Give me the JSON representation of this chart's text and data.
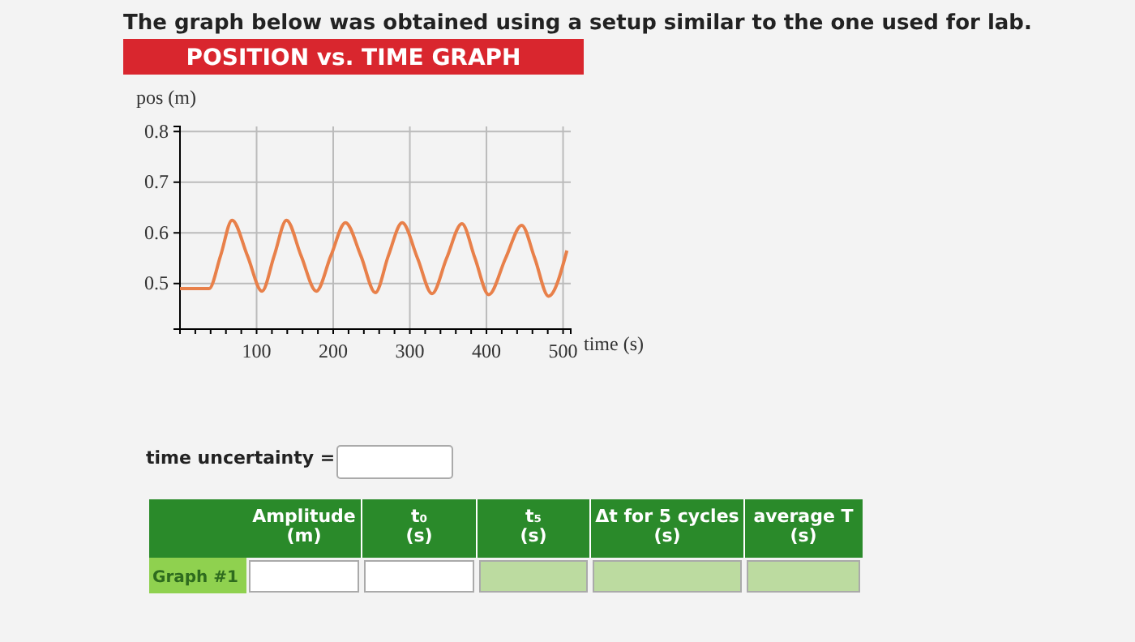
{
  "chart_data": {
    "type": "line",
    "title": "The graph below was obtained using a setup similar to the one used for lab.",
    "subtitle": "POSITION vs. TIME GRAPH",
    "xlabel": "time (s)",
    "ylabel": "pos (m)",
    "xlim": [
      0,
      510
    ],
    "ylim": [
      0.41,
      0.81
    ],
    "xticks": [
      {
        "value": 20,
        "label": null
      },
      {
        "value": 40,
        "label": null
      },
      {
        "value": 60,
        "label": null
      },
      {
        "value": 80,
        "label": null
      },
      100,
      {
        "value": 120,
        "label": null
      },
      {
        "value": 140,
        "label": null
      },
      {
        "value": 160,
        "label": null
      },
      {
        "value": 180,
        "label": null
      },
      200,
      {
        "value": 220,
        "label": null
      },
      {
        "value": 240,
        "label": null
      },
      {
        "value": 260,
        "label": null
      },
      {
        "value": 280,
        "label": null
      },
      300,
      {
        "value": 320,
        "label": null
      },
      {
        "value": 340,
        "label": null
      },
      {
        "value": 360,
        "label": null
      },
      {
        "value": 380,
        "label": null
      },
      400,
      {
        "value": 420,
        "label": null
      },
      {
        "value": 440,
        "label": null
      },
      {
        "value": 460,
        "label": null
      },
      {
        "value": 480,
        "label": null
      },
      500
    ],
    "yticks": [
      0.5,
      0.6,
      0.7,
      0.8
    ],
    "grid": true,
    "series": [
      {
        "color": "#e8804a",
        "x": [
          0,
          38,
          53,
          68,
          88,
          107,
          123,
          139,
          158,
          178,
          197,
          216,
          236,
          255,
          272,
          290,
          310,
          329,
          348,
          368,
          385,
          403,
          425,
          446,
          463,
          481,
          505
        ],
        "values": [
          0.49,
          0.49,
          0.555,
          0.625,
          0.555,
          0.485,
          0.555,
          0.625,
          0.555,
          0.485,
          0.555,
          0.62,
          0.555,
          0.482,
          0.555,
          0.62,
          0.55,
          0.48,
          0.55,
          0.618,
          0.55,
          0.478,
          0.55,
          0.615,
          0.55,
          0.475,
          0.565
        ]
      }
    ],
    "annotations": [
      "time uncertainty =",
      "Amplitude\n(m)",
      "t₀\n(s)",
      "t₅\n(s)",
      "Δt for 5 cycles\n(s)",
      "average T\n(s)",
      "Graph #1"
    ]
  }
}
